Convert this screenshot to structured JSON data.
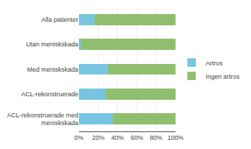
{
  "chart_data": {
    "type": "bar",
    "orientation": "horizontal",
    "stacked": true,
    "categories": [
      "Alla patienter",
      "Utan meniskskada",
      "Med meniskskada",
      "ACL-rekonstruerade",
      "ACL-rekonstruerade med\nmeniskskada"
    ],
    "series": [
      {
        "name": "Artros",
        "color": "#77c5e0",
        "values": [
          16,
          2,
          30,
          28,
          35
        ]
      },
      {
        "name": "Ingen artros",
        "color": "#8fbe6e",
        "values": [
          84,
          98,
          70,
          72,
          65
        ]
      }
    ],
    "xlim": [
      0,
      100
    ],
    "xticks": [
      {
        "value": 0,
        "label": "0%"
      },
      {
        "value": 20,
        "label": "20%"
      },
      {
        "value": 40,
        "label": "40%"
      },
      {
        "value": 60,
        "label": "60%"
      },
      {
        "value": 80,
        "label": "80%"
      },
      {
        "value": 100,
        "label": "100%"
      }
    ],
    "grid": true,
    "legend": "right"
  }
}
